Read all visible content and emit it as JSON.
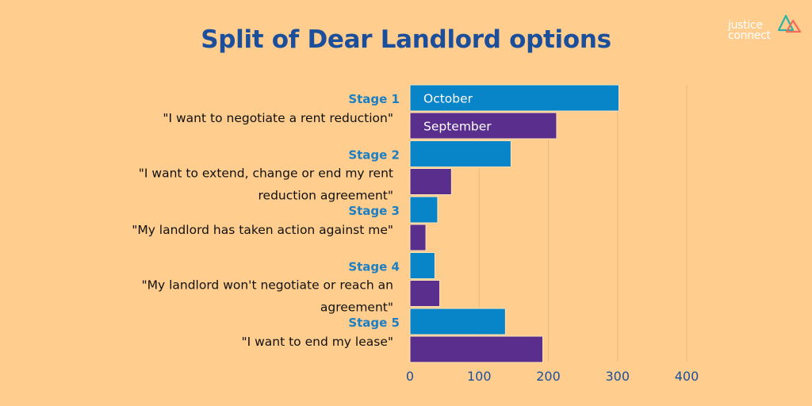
{
  "title": "Split of Dear Landlord options",
  "logo": {
    "line1": "justice",
    "line2": "connect"
  },
  "colors": {
    "background": "#FFCD8D",
    "title": "#1B4F9C",
    "stage": "#1B7FC4",
    "october": "#0884C9",
    "september": "#5A2E8C",
    "grid": "#E8B97E"
  },
  "chart_data": {
    "type": "bar",
    "orientation": "horizontal",
    "title": "Split of Dear Landlord options",
    "categories": [
      {
        "stage": "Stage 1",
        "desc": [
          "\"I want to negotiate a rent reduction\""
        ]
      },
      {
        "stage": "Stage 2",
        "desc": [
          "\"I want to extend, change or end my rent",
          "reduction agreement\""
        ]
      },
      {
        "stage": "Stage 3",
        "desc": [
          "\"My landlord has taken action against me\""
        ]
      },
      {
        "stage": "Stage 4",
        "desc": [
          "\"My landlord won't negotiate or reach an",
          "agreement\""
        ]
      },
      {
        "stage": "Stage 5",
        "desc": [
          "\"I want to end my lease\""
        ]
      }
    ],
    "series": [
      {
        "name": "October",
        "color": "#0884C9",
        "values": [
          302,
          146,
          40,
          36,
          138
        ]
      },
      {
        "name": "September",
        "color": "#5A2E8C",
        "values": [
          212,
          60,
          23,
          43,
          192
        ]
      }
    ],
    "legend_placement": "inside-first-bars",
    "xlim": [
      0,
      400
    ],
    "xticks": [
      0,
      100,
      200,
      300,
      400
    ],
    "grid": true,
    "xlabel": "",
    "ylabel": ""
  }
}
